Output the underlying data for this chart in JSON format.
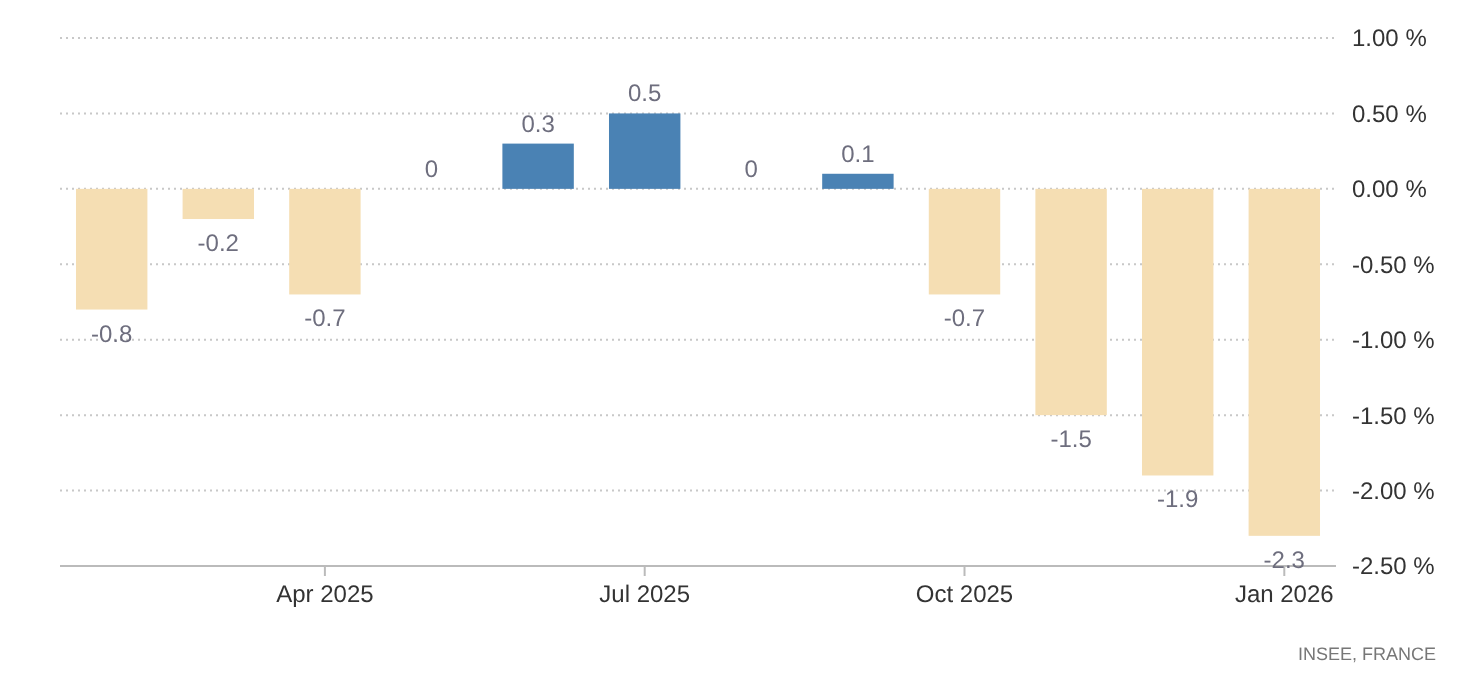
{
  "chart_data": {
    "type": "bar",
    "categories": [
      null,
      null,
      "Apr 2025",
      null,
      null,
      "Jul 2025",
      null,
      null,
      "Oct 2025",
      null,
      null,
      "Jan 2026"
    ],
    "values": [
      -0.8,
      -0.2,
      -0.7,
      0,
      0.3,
      0.5,
      0,
      0.1,
      -0.7,
      -1.5,
      -1.9,
      -2.3
    ],
    "colors": [
      "#f5deb3",
      "#f5deb3",
      "#f5deb3",
      "#f5deb3",
      "#4a82b4",
      "#4a82b4",
      "#f5deb3",
      "#4a82b4",
      "#f5deb3",
      "#f5deb3",
      "#f5deb3",
      "#f5deb3"
    ],
    "ylim": [
      -2.5,
      1
    ],
    "yticks": [
      {
        "value": 1,
        "label": "1.00 %"
      },
      {
        "value": 0.5,
        "label": "0.50 %"
      },
      {
        "value": 0,
        "label": "0.00 %"
      },
      {
        "value": -0.5,
        "label": "-0.50 %"
      },
      {
        "value": -1,
        "label": "-1.00 %"
      },
      {
        "value": -1.5,
        "label": "-1.50 %"
      },
      {
        "value": -2,
        "label": "-2.00 %"
      },
      {
        "value": -2.5,
        "label": "-2.50 %"
      }
    ],
    "grid": "y",
    "data_labels": true,
    "annotations": [
      "INSEE, FRANCE"
    ]
  }
}
